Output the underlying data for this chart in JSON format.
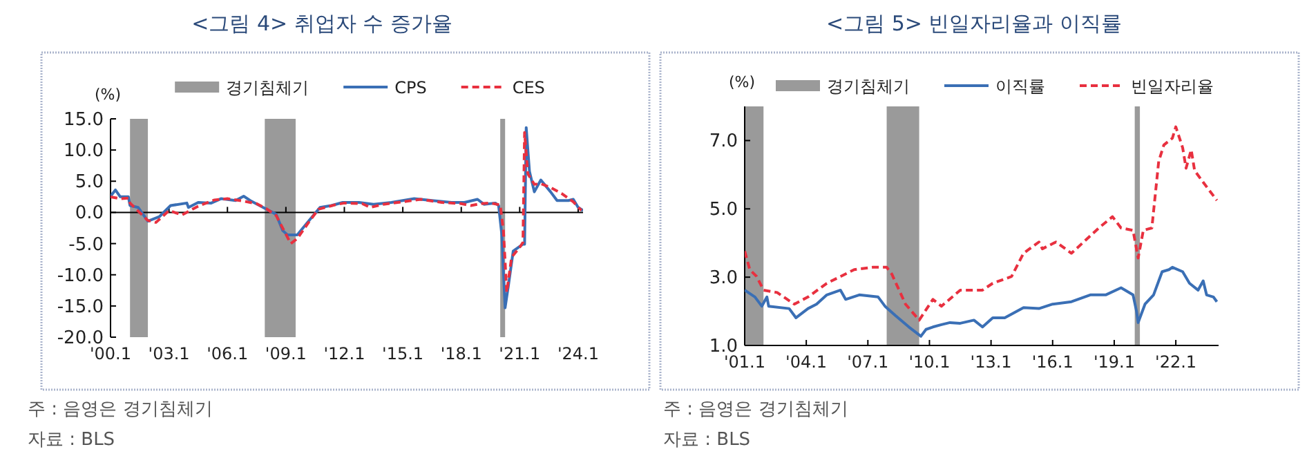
{
  "chart_data": [
    {
      "type": "line",
      "title": "<그림 4> 취업자 수 증가율",
      "ylabel": "(%)",
      "legend": "top",
      "grid": false,
      "xlim": [
        "2000-01",
        "2024-04"
      ],
      "ylim": [
        -20,
        15
      ],
      "xticks": [
        {
          "value": "2000-01",
          "label": "'00.1"
        },
        {
          "value": "2003-01",
          "label": "'03.1"
        },
        {
          "value": "2006-01",
          "label": "'06.1"
        },
        {
          "value": "2009-01",
          "label": "'09.1"
        },
        {
          "value": "2012-01",
          "label": "'12.1"
        },
        {
          "value": "2015-01",
          "label": "'15.1"
        },
        {
          "value": "2018-01",
          "label": "'18.1"
        },
        {
          "value": "2021-01",
          "label": "'21.1"
        },
        {
          "value": "2024-01",
          "label": "'24.1"
        }
      ],
      "yticks": [
        {
          "value": -20,
          "label": "-20.0"
        },
        {
          "value": -15,
          "label": "-15.0"
        },
        {
          "value": -10,
          "label": "-10.0"
        },
        {
          "value": -5,
          "label": "-5.0"
        },
        {
          "value": 0,
          "label": "0.0"
        },
        {
          "value": 5,
          "label": "5.0"
        },
        {
          "value": 10,
          "label": "10.0"
        },
        {
          "value": 15,
          "label": "15.0"
        }
      ],
      "ref_lines": [
        {
          "axis": "y",
          "value": 0,
          "color": "#000000"
        }
      ],
      "bands": [
        {
          "axis": "x",
          "from": "2001-01",
          "to": "2001-12",
          "label": "경기침체기",
          "color": "#9a9a9a"
        },
        {
          "axis": "x",
          "from": "2007-12",
          "to": "2009-07",
          "color": "#9a9a9a"
        },
        {
          "axis": "x",
          "from": "2020-01",
          "to": "2020-04",
          "color": "#9a9a9a"
        }
      ],
      "series": [
        {
          "name": "CPS",
          "color": "#3a6fb5",
          "line_style": "solid",
          "x": [
            "2000-01",
            "2000-04",
            "2000-07",
            "2000-12",
            "2001-01",
            "2001-06",
            "2001-12",
            "2002-07",
            "2003-02",
            "2003-12",
            "2004-01",
            "2004-07",
            "2005-03",
            "2005-09",
            "2006-06",
            "2006-11",
            "2007-03",
            "2007-11",
            "2008-07",
            "2008-11",
            "2009-02",
            "2009-08",
            "2010-03",
            "2010-10",
            "2011-05",
            "2011-12",
            "2012-10",
            "2013-07",
            "2014-06",
            "2015-08",
            "2016-07",
            "2017-07",
            "2018-03",
            "2018-11",
            "2019-03",
            "2019-10",
            "2019-12",
            "2020-02",
            "2020-04",
            "2020-06",
            "2020-09",
            "2021-03",
            "2021-04",
            "2021-05",
            "2021-07",
            "2021-10",
            "2022-02",
            "2022-08",
            "2022-12",
            "2023-07",
            "2023-10",
            "2024-01",
            "2024-04"
          ],
          "values": [
            2.6,
            3.6,
            2.5,
            2.5,
            1.1,
            0.8,
            -1.4,
            -0.7,
            1.1,
            1.5,
            0.8,
            1.6,
            1.5,
            2.2,
            1.9,
            2.6,
            1.9,
            0.8,
            -0.3,
            -2.9,
            -3.6,
            -3.6,
            -1.4,
            0.8,
            1.1,
            1.6,
            1.6,
            1.3,
            1.6,
            2.2,
            1.9,
            1.6,
            1.6,
            2.1,
            1.3,
            1.5,
            1.1,
            -3.6,
            -15.3,
            -11.8,
            -6.2,
            -5.1,
            -5.1,
            13.6,
            6.6,
            3.3,
            5.2,
            3.3,
            1.9,
            1.9,
            2.1,
            0.8,
            0.3
          ]
        },
        {
          "name": "CES",
          "color": "#e8303f",
          "line_style": "dashed",
          "x": [
            "2000-01",
            "2000-07",
            "2000-12",
            "2001-01",
            "2001-12",
            "2002-05",
            "2003-01",
            "2003-09",
            "2004-07",
            "2005-05",
            "2006-01",
            "2006-11",
            "2007-07",
            "2008-01",
            "2008-07",
            "2009-01",
            "2009-04",
            "2009-08",
            "2010-03",
            "2010-09",
            "2011-07",
            "2012-01",
            "2012-12",
            "2013-05",
            "2014-01",
            "2015-01",
            "2015-12",
            "2017-01",
            "2018-01",
            "2018-07",
            "2019-01",
            "2019-07",
            "2020-01",
            "2020-03",
            "2020-05",
            "2020-08",
            "2021-01",
            "2021-03",
            "2021-04",
            "2021-06",
            "2021-10",
            "2022-02",
            "2022-08",
            "2023-03",
            "2023-10",
            "2024-03"
          ],
          "values": [
            2.5,
            2.2,
            2.3,
            1.5,
            -1.3,
            -1.6,
            0.3,
            -0.4,
            1.0,
            2.0,
            2.2,
            1.8,
            1.4,
            0.6,
            -0.5,
            -3.5,
            -5.0,
            -4.2,
            -1.6,
            0.5,
            1.2,
            1.5,
            1.4,
            0.8,
            1.3,
            1.7,
            2.1,
            1.6,
            1.4,
            1.1,
            1.4,
            1.5,
            1.2,
            -3.0,
            -12.8,
            -7.2,
            -5.6,
            -4.8,
            12.8,
            6.2,
            4.5,
            4.6,
            4.0,
            3.0,
            1.7,
            0.3
          ]
        }
      ],
      "annotations": [
        "주 : 음영은 경기침체기",
        "자료 : BLS"
      ]
    },
    {
      "type": "line",
      "title": "<그림 5> 빈일자리율과 이직률",
      "ylabel": "(%)",
      "legend": "top",
      "grid": false,
      "xlim": [
        "2001-01",
        "2024-02"
      ],
      "ylim": [
        1,
        8
      ],
      "xticks": [
        {
          "value": "2001-01",
          "label": "'01.1"
        },
        {
          "value": "2004-01",
          "label": "'04.1"
        },
        {
          "value": "2007-01",
          "label": "'07.1"
        },
        {
          "value": "2010-01",
          "label": "'10.1"
        },
        {
          "value": "2013-01",
          "label": "'13.1"
        },
        {
          "value": "2016-01",
          "label": "'16.1"
        },
        {
          "value": "2019-01",
          "label": "'19.1"
        },
        {
          "value": "2022-01",
          "label": "'22.1"
        }
      ],
      "yticks": [
        {
          "value": 1,
          "label": "1.0"
        },
        {
          "value": 3,
          "label": "3.0"
        },
        {
          "value": 5,
          "label": "5.0"
        },
        {
          "value": 7,
          "label": "7.0"
        }
      ],
      "bands": [
        {
          "axis": "x",
          "from": "2001-01",
          "to": "2001-12",
          "label": "경기침체기",
          "color": "#9a9a9a"
        },
        {
          "axis": "x",
          "from": "2007-12",
          "to": "2009-07",
          "color": "#9a9a9a"
        },
        {
          "axis": "x",
          "from": "2020-01",
          "to": "2020-04",
          "color": "#9a9a9a"
        }
      ],
      "series": [
        {
          "name": "이직률",
          "color": "#3a6fb5",
          "line_style": "solid",
          "x": [
            "2001-01",
            "2001-07",
            "2001-11",
            "2002-02",
            "2002-03",
            "2003-03",
            "2003-07",
            "2004-02",
            "2004-07",
            "2005-01",
            "2005-09",
            "2005-12",
            "2006-08",
            "2007-07",
            "2007-11",
            "2008-05",
            "2009-01",
            "2009-08",
            "2009-11",
            "2010-03",
            "2010-08",
            "2011-01",
            "2011-07",
            "2012-03",
            "2012-08",
            "2013-02",
            "2013-09",
            "2014-08",
            "2015-05",
            "2016-01",
            "2016-12",
            "2017-11",
            "2018-08",
            "2019-05",
            "2019-12",
            "2020-02",
            "2020-03",
            "2020-07",
            "2020-12",
            "2021-05",
            "2021-09",
            "2021-11",
            "2022-05",
            "2022-09",
            "2023-02",
            "2023-05",
            "2023-07",
            "2023-11",
            "2024-01"
          ],
          "values": [
            2.62,
            2.42,
            2.15,
            2.42,
            2.15,
            2.08,
            1.81,
            2.08,
            2.21,
            2.48,
            2.62,
            2.35,
            2.48,
            2.42,
            2.15,
            1.88,
            1.54,
            1.27,
            1.47,
            1.54,
            1.61,
            1.67,
            1.65,
            1.74,
            1.54,
            1.81,
            1.81,
            2.11,
            2.08,
            2.21,
            2.28,
            2.48,
            2.48,
            2.69,
            2.48,
            2.01,
            1.67,
            2.21,
            2.48,
            3.16,
            3.22,
            3.29,
            3.16,
            2.82,
            2.62,
            2.89,
            2.48,
            2.42,
            2.28
          ]
        },
        {
          "name": "빈일자리율",
          "color": "#e8303f",
          "line_style": "dashed",
          "x": [
            "2001-01",
            "2001-04",
            "2001-08",
            "2001-12",
            "2002-08",
            "2003-06",
            "2004-02",
            "2005-01",
            "2006-05",
            "2007-04",
            "2007-12",
            "2008-03",
            "2008-11",
            "2009-07",
            "2010-03",
            "2010-08",
            "2011-07",
            "2012-08",
            "2013-02",
            "2014-01",
            "2014-08",
            "2015-05",
            "2015-07",
            "2016-03",
            "2016-12",
            "2018-04",
            "2018-12",
            "2019-05",
            "2019-12",
            "2020-03",
            "2020-06",
            "2020-11",
            "2021-03",
            "2021-06",
            "2021-11",
            "2022-01",
            "2022-05",
            "2022-07",
            "2022-10",
            "2022-12",
            "2023-05",
            "2023-08",
            "2024-01"
          ],
          "values": [
            3.76,
            3.22,
            3.02,
            2.62,
            2.55,
            2.21,
            2.42,
            2.82,
            3.22,
            3.29,
            3.29,
            3.09,
            2.21,
            1.74,
            2.35,
            2.15,
            2.62,
            2.62,
            2.82,
            3.02,
            3.7,
            4.03,
            3.83,
            4.03,
            3.7,
            4.44,
            4.77,
            4.44,
            4.37,
            3.56,
            4.37,
            4.44,
            6.39,
            6.87,
            7.07,
            7.4,
            6.79,
            6.19,
            6.73,
            6.12,
            5.78,
            5.58,
            5.25
          ]
        }
      ],
      "annotations": [
        "주 : 음영은 경기침체기",
        "자료 : BLS"
      ]
    }
  ]
}
